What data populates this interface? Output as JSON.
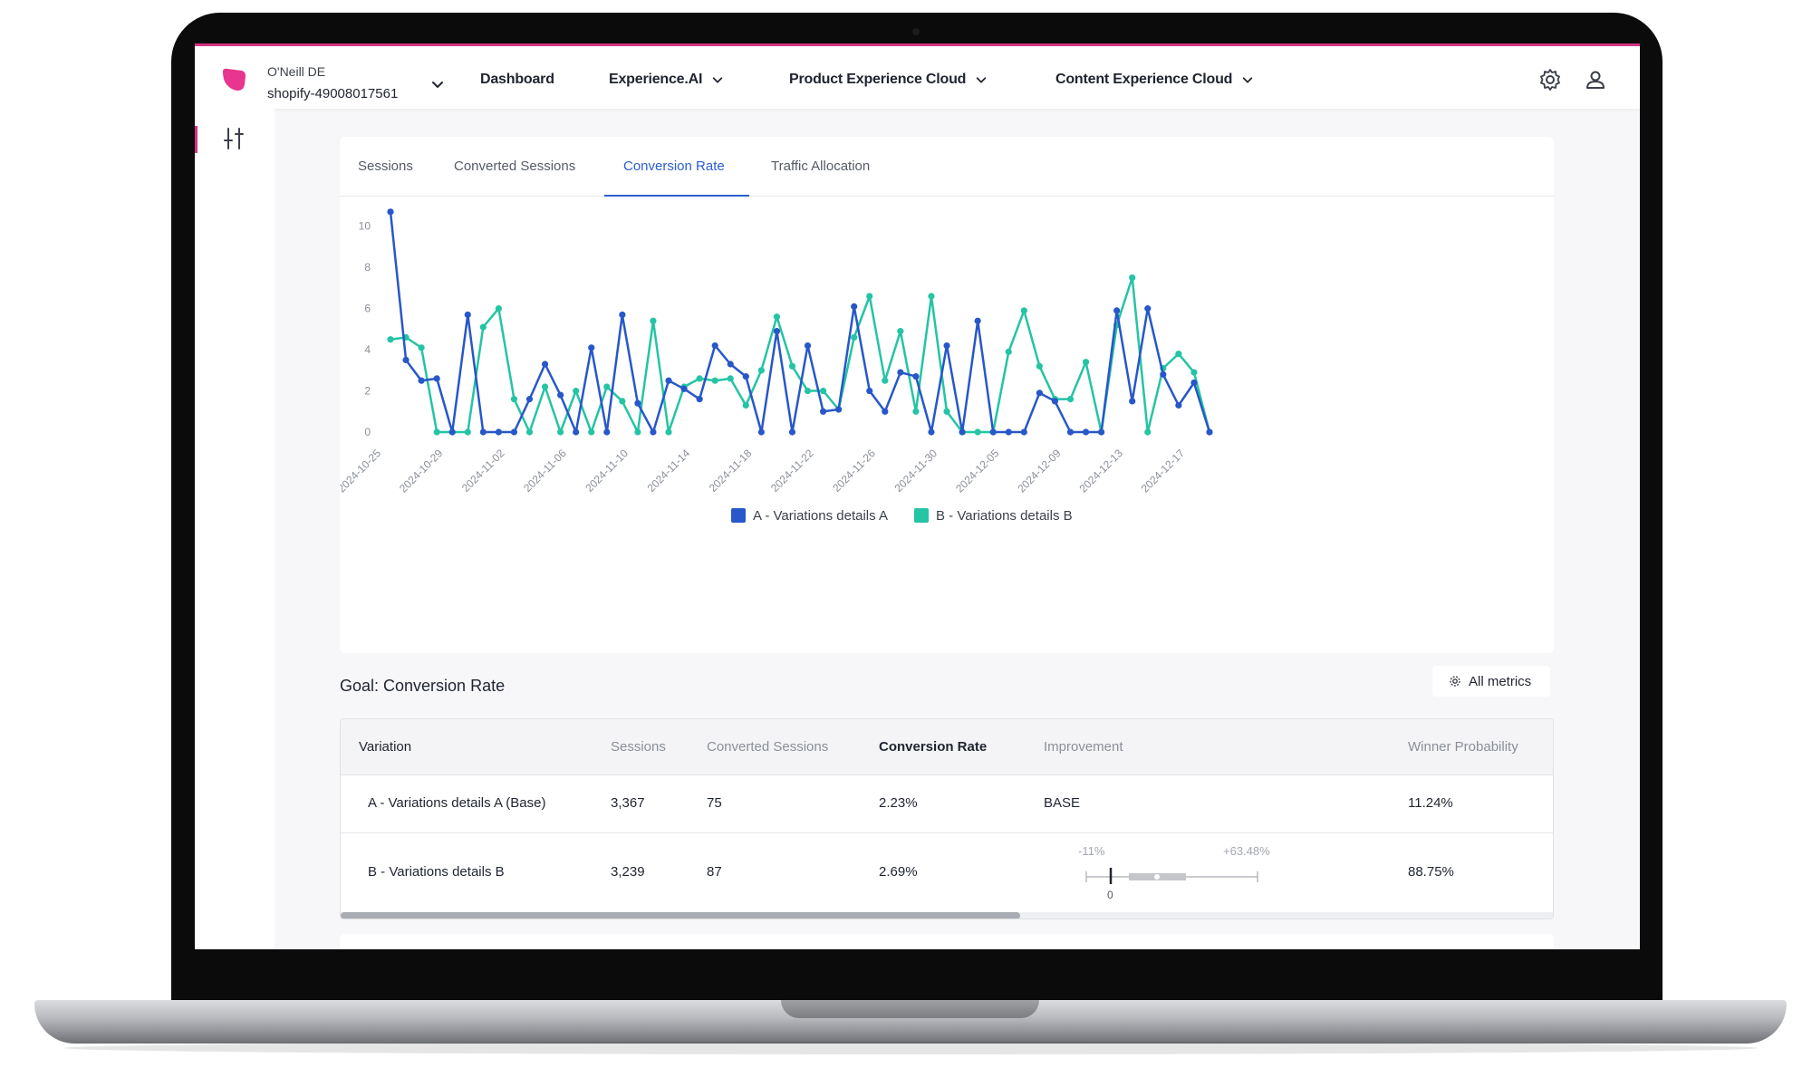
{
  "header": {
    "account_name": "O'Neill DE",
    "account_id": "shopify-49008017561",
    "nav": [
      {
        "label": "Dashboard"
      },
      {
        "label": "Experience.AI"
      },
      {
        "label": "Product Experience Cloud"
      },
      {
        "label": "Content Experience Cloud"
      }
    ]
  },
  "tabs": [
    "Sessions",
    "Converted Sessions",
    "Conversion Rate",
    "Traffic Allocation"
  ],
  "active_tab": "Conversion Rate",
  "colors": {
    "brand": "#e8358f",
    "accent": "#2b5fcf",
    "series_a": "#2757c9",
    "series_b": "#24c4a4"
  },
  "chart_data": {
    "type": "line",
    "x": [
      "2024-10-25",
      "2024-10-26",
      "2024-10-27",
      "2024-10-28",
      "2024-10-29",
      "2024-10-30",
      "2024-10-31",
      "2024-11-01",
      "2024-11-02",
      "2024-11-03",
      "2024-11-04",
      "2024-11-05",
      "2024-11-06",
      "2024-11-07",
      "2024-11-08",
      "2024-11-09",
      "2024-11-10",
      "2024-11-11",
      "2024-11-12",
      "2024-11-13",
      "2024-11-14",
      "2024-11-15",
      "2024-11-16",
      "2024-11-17",
      "2024-11-18",
      "2024-11-19",
      "2024-11-20",
      "2024-11-21",
      "2024-11-22",
      "2024-11-23",
      "2024-11-24",
      "2024-11-25",
      "2024-11-26",
      "2024-11-27",
      "2024-11-28",
      "2024-11-29",
      "2024-11-30",
      "2024-12-01",
      "2024-12-02",
      "2024-12-03",
      "2024-12-05",
      "2024-12-06",
      "2024-12-07",
      "2024-12-08",
      "2024-12-09",
      "2024-12-10",
      "2024-12-11",
      "2024-12-12",
      "2024-12-13",
      "2024-12-14",
      "2024-12-15",
      "2024-12-16",
      "2024-12-17",
      "2024-12-18"
    ],
    "tick_labels": [
      "2024-10-25",
      "2024-10-29",
      "2024-11-02",
      "2024-11-06",
      "2024-11-10",
      "2024-11-14",
      "2024-11-18",
      "2024-11-22",
      "2024-11-26",
      "2024-11-30",
      "2024-12-05",
      "2024-12-09",
      "2024-12-13",
      "2024-12-17"
    ],
    "y_ticks": [
      0,
      2,
      4,
      6,
      8,
      10
    ],
    "ylim": [
      0,
      11
    ],
    "series": [
      {
        "name": "A - Variations details A",
        "values": [
          10.7,
          3.5,
          2.5,
          2.6,
          0,
          5.7,
          0,
          0,
          0,
          1.6,
          3.3,
          1.8,
          0,
          4.1,
          0,
          5.7,
          1.4,
          0,
          2.5,
          2.1,
          1.6,
          4.2,
          3.3,
          2.7,
          0,
          4.9,
          0,
          4.2,
          1.0,
          1.1,
          6.1,
          2.0,
          1.0,
          2.9,
          2.7,
          0,
          4.2,
          0,
          5.4,
          0,
          0,
          0,
          1.9,
          1.5,
          0,
          0,
          0,
          5.9,
          1.5,
          6.0,
          2.8,
          1.3,
          2.4,
          0
        ]
      },
      {
        "name": "B - Variations details B",
        "values": [
          4.5,
          4.6,
          4.1,
          0,
          0,
          0,
          5.1,
          6.0,
          1.6,
          0,
          2.2,
          0,
          2.0,
          0,
          2.2,
          1.5,
          0,
          5.4,
          0,
          2.2,
          2.6,
          2.5,
          2.6,
          1.3,
          3.0,
          5.6,
          3.2,
          2.0,
          2.0,
          1.1,
          4.6,
          6.6,
          2.5,
          4.9,
          1.0,
          6.6,
          1.0,
          0,
          0,
          0,
          3.9,
          5.9,
          3.2,
          1.6,
          1.6,
          3.4,
          0,
          5.2,
          7.5,
          0,
          3.1,
          3.8,
          2.9,
          0
        ]
      }
    ],
    "legend_position": "bottom-center",
    "grid": false
  },
  "goal": {
    "title": "Goal: Conversion Rate",
    "all_metrics_label": "All metrics"
  },
  "table": {
    "headers": [
      "Variation",
      "Sessions",
      "Converted Sessions",
      "Conversion Rate",
      "Improvement",
      "Winner Probability"
    ],
    "rows": [
      {
        "variation": "A - Variations details A (Base)",
        "sessions": "3,367",
        "converted": "75",
        "rate": "2.23%",
        "improvement": "BASE",
        "winner": "11.24%"
      },
      {
        "variation": "B - Variations details B",
        "sessions": "3,239",
        "converted": "87",
        "rate": "2.69%",
        "improvement_low": "-11%",
        "improvement_high": "+63.48%",
        "improvement_zero": "0",
        "winner": "88.75%"
      }
    ],
    "scroll_fraction": 0.56
  }
}
